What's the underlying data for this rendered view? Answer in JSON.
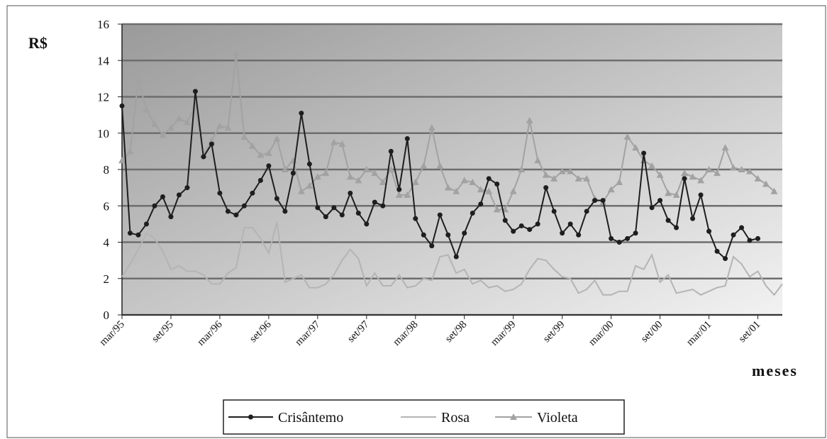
{
  "chart_data": {
    "type": "line",
    "ylabel": "R$",
    "xlabel": "meses",
    "categories": [
      "mar/95",
      null,
      null,
      null,
      null,
      null,
      "set/95",
      null,
      null,
      null,
      null,
      null,
      "mar/96",
      null,
      null,
      null,
      null,
      null,
      "set/96",
      null,
      null,
      null,
      null,
      null,
      "mar/97",
      null,
      null,
      null,
      null,
      null,
      "set/97",
      null,
      null,
      null,
      null,
      null,
      "mar/98",
      null,
      null,
      null,
      null,
      null,
      "set/98",
      null,
      null,
      null,
      null,
      null,
      "mar/99",
      null,
      null,
      null,
      null,
      null,
      "set/99",
      null,
      null,
      null,
      null,
      null,
      "mar/00",
      null,
      null,
      null,
      null,
      null,
      "set/00",
      null,
      null,
      null,
      null,
      null,
      "mar/01",
      null,
      null,
      null,
      null,
      null,
      "set/01",
      null,
      null,
      null
    ],
    "ylim": [
      0,
      16
    ],
    "yticks": [
      0,
      2,
      4,
      6,
      8,
      10,
      12,
      14,
      16
    ],
    "grid": true,
    "legend": "bottom",
    "series": [
      {
        "name": "Crisântemo",
        "color": "#1e1e1e",
        "marker": "circle",
        "values": [
          11.5,
          4.5,
          4.4,
          5.0,
          6.0,
          6.5,
          5.4,
          6.6,
          7.0,
          12.3,
          8.7,
          9.4,
          6.7,
          5.7,
          5.5,
          6.0,
          6.7,
          7.4,
          8.2,
          6.4,
          5.7,
          7.8,
          11.1,
          8.3,
          5.9,
          5.4,
          5.9,
          5.5,
          6.7,
          5.6,
          5.0,
          6.2,
          6.0,
          9.0,
          6.9,
          9.7,
          5.3,
          4.4,
          3.8,
          5.5,
          4.4,
          3.2,
          4.5,
          5.6,
          6.1,
          7.5,
          7.2,
          5.2,
          4.6,
          4.9,
          4.7,
          5.0,
          7.0,
          5.7,
          4.5,
          5.0,
          4.4,
          5.7,
          6.3,
          6.3,
          4.2,
          4.0,
          4.2,
          4.5,
          8.9,
          5.9,
          6.3,
          5.2,
          4.8,
          7.5,
          5.3,
          6.6,
          4.6,
          3.5,
          3.1,
          4.4,
          4.8,
          4.1,
          4.2,
          null,
          null,
          null
        ]
      },
      {
        "name": "Rosa",
        "color": "#b4b4b4",
        "marker": "none",
        "values": [
          2.1,
          2.8,
          3.6,
          4.5,
          4.2,
          3.5,
          2.5,
          2.7,
          2.4,
          2.4,
          2.2,
          1.7,
          1.7,
          2.3,
          2.6,
          4.8,
          4.8,
          4.2,
          3.4,
          5.1,
          1.8,
          2.0,
          2.2,
          1.5,
          1.5,
          1.7,
          2.2,
          3.0,
          3.6,
          3.1,
          1.6,
          2.3,
          1.6,
          1.6,
          2.2,
          1.5,
          1.6,
          2.0,
          1.9,
          3.2,
          3.3,
          2.3,
          2.5,
          1.7,
          1.9,
          1.5,
          1.6,
          1.3,
          1.4,
          1.7,
          2.5,
          3.1,
          3.0,
          2.5,
          2.1,
          2.0,
          1.2,
          1.4,
          1.9,
          1.1,
          1.1,
          1.3,
          1.3,
          2.7,
          2.5,
          3.3,
          1.8,
          2.2,
          1.2,
          1.3,
          1.4,
          1.1,
          1.3,
          1.5,
          1.6,
          3.2,
          2.8,
          2.1,
          2.4,
          1.6,
          1.1,
          1.7
        ]
      },
      {
        "name": "Violeta",
        "color": "#a2a2a2",
        "marker": "triangle",
        "values": [
          8.5,
          9.0,
          12.9,
          11.3,
          10.5,
          9.9,
          10.3,
          10.8,
          10.6,
          11.5,
          8.8,
          9.6,
          10.4,
          10.3,
          14.4,
          9.8,
          9.3,
          8.8,
          8.9,
          9.7,
          8.0,
          8.5,
          6.8,
          7.1,
          7.6,
          7.8,
          9.5,
          9.4,
          7.6,
          7.4,
          8.0,
          7.8,
          7.3,
          8.0,
          6.6,
          6.6,
          7.3,
          8.2,
          10.3,
          8.2,
          7.0,
          6.8,
          7.4,
          7.3,
          6.9,
          6.8,
          5.8,
          5.8,
          6.8,
          8.0,
          10.7,
          8.5,
          7.7,
          7.5,
          7.9,
          7.9,
          7.5,
          7.5,
          6.4,
          6.2,
          6.9,
          7.3,
          9.8,
          9.2,
          8.5,
          8.2,
          7.7,
          6.7,
          6.6,
          7.8,
          7.6,
          7.4,
          8.0,
          7.8,
          9.2,
          8.1,
          8.0,
          7.9,
          7.5,
          7.2,
          6.8,
          null
        ]
      }
    ]
  }
}
